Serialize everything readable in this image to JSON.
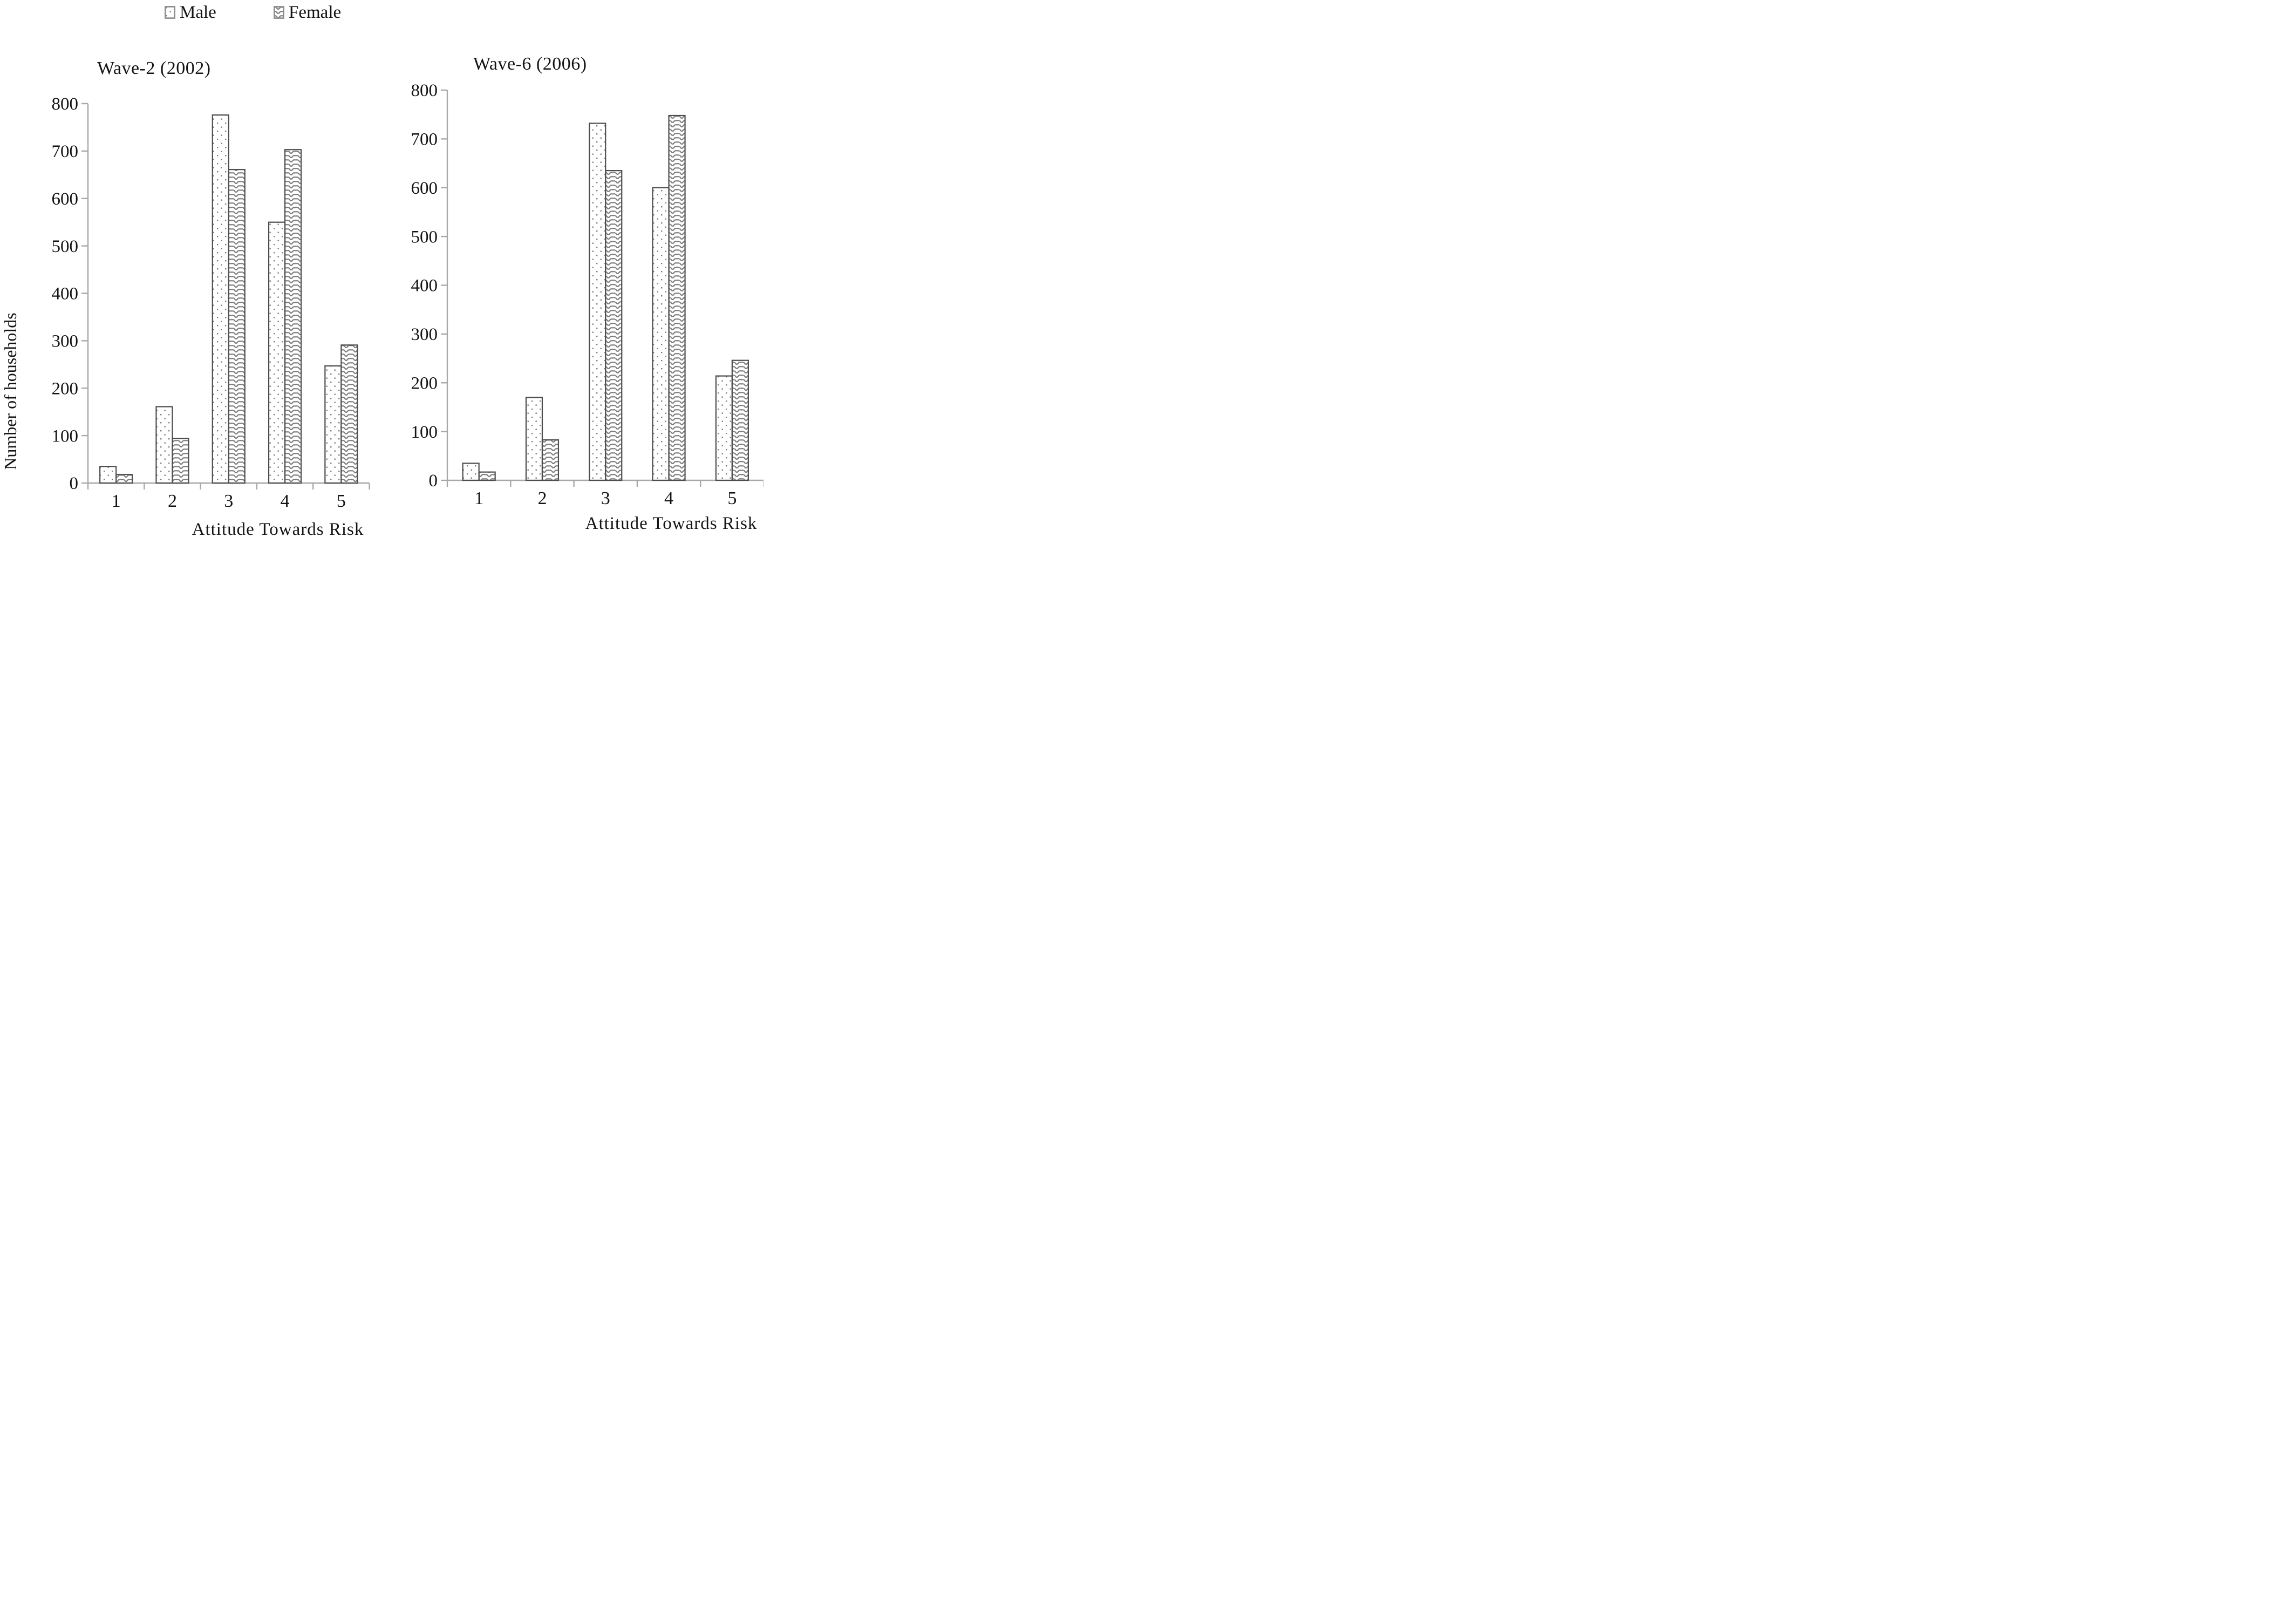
{
  "legend": {
    "items": [
      {
        "label": "Male",
        "pattern": "dots"
      },
      {
        "label": "Female",
        "pattern": "scales"
      }
    ]
  },
  "chart_data": [
    {
      "type": "bar",
      "title": "Wave-2 (2002)",
      "xlabel": "Attitude Towards Risk",
      "ylabel": "Number of households",
      "categories": [
        "1",
        "2",
        "3",
        "4",
        "5"
      ],
      "series": [
        {
          "name": "Male",
          "pattern": "dots",
          "values": [
            35,
            161,
            776,
            550,
            247
          ]
        },
        {
          "name": "Female",
          "pattern": "scales",
          "values": [
            18,
            94,
            661,
            703,
            291
          ]
        }
      ],
      "ylim": [
        0,
        800
      ],
      "yticks": [
        0,
        100,
        200,
        300,
        400,
        500,
        600,
        700,
        800
      ],
      "grid": false,
      "legend_position": "top"
    },
    {
      "type": "bar",
      "title": "Wave-6 (2006)",
      "xlabel": "Attitude Towards Risk",
      "ylabel": "",
      "categories": [
        "1",
        "2",
        "3",
        "4",
        "5"
      ],
      "series": [
        {
          "name": "Male",
          "pattern": "dots",
          "values": [
            35,
            170,
            732,
            600,
            214
          ]
        },
        {
          "name": "Female",
          "pattern": "scales",
          "values": [
            17,
            83,
            635,
            748,
            246
          ]
        }
      ],
      "ylim": [
        0,
        800
      ],
      "yticks": [
        0,
        100,
        200,
        300,
        400,
        500,
        600,
        700,
        800
      ],
      "grid": false,
      "legend_position": "top"
    }
  ],
  "colors": {
    "axis": "#a8a8a8",
    "bar_border": "#4d4d4d",
    "pattern_ink": "#7d7d7d",
    "swatch_border": "#8c8c8c",
    "text": "#141414",
    "background": "#ffffff"
  }
}
